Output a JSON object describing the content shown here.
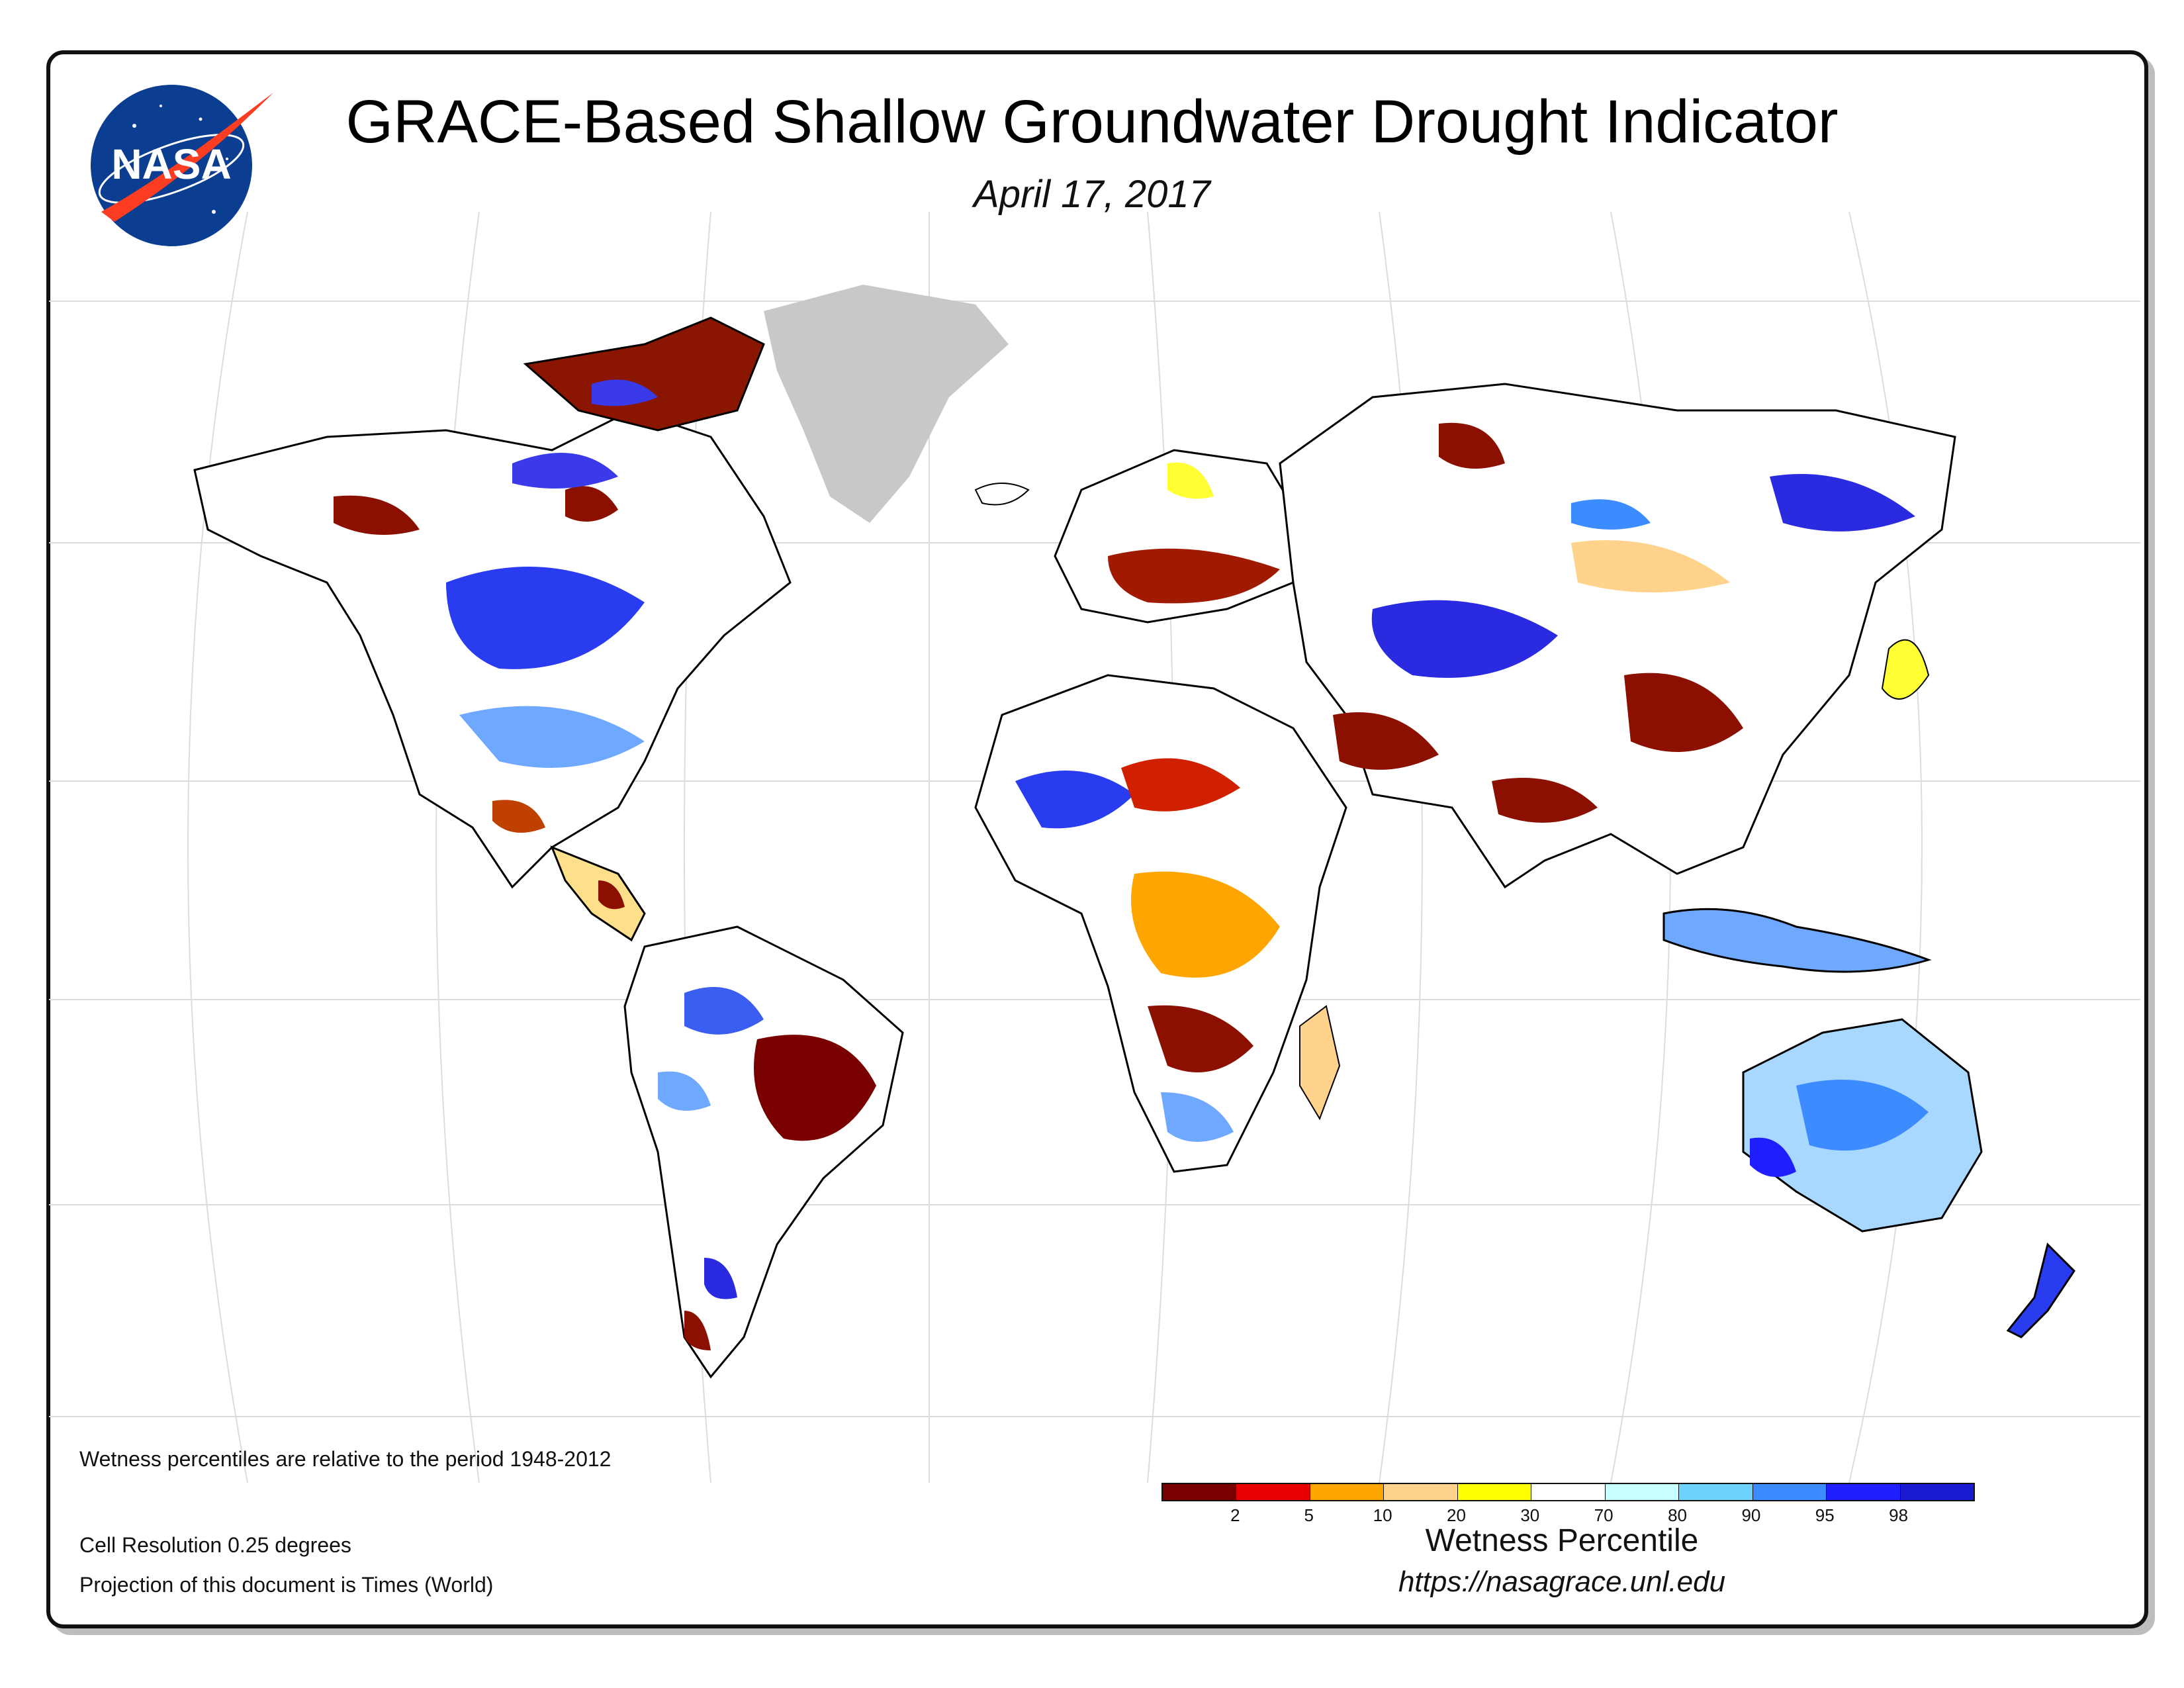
{
  "title": "GRACE-Based Shallow Groundwater Drought Indicator",
  "date": "April 17, 2017",
  "logo_text": "NASA",
  "notes": {
    "period": "Wetness percentiles are relative to the period 1948-2012",
    "resolution": "Cell Resolution 0.25 degrees",
    "projection": "Projection of this document is Times (World)"
  },
  "legend": {
    "title": "Wetness Percentile",
    "colors": [
      "#7a0000",
      "#e80000",
      "#ffa500",
      "#ffd38c",
      "#ffff00",
      "#ffffff",
      "#c8ffff",
      "#6ed2ff",
      "#3c8cff",
      "#1e1eff",
      "#1a1ad2"
    ],
    "ticks": [
      "2",
      "5",
      "10",
      "20",
      "30",
      "70",
      "80",
      "90",
      "95",
      "98"
    ]
  },
  "url": "https://nasagrace.unl.edu",
  "map_colors": {
    "land_neutral": "#ffffff",
    "greenland": "#c8c8c8",
    "outline": "#000000",
    "graticule": "#dcdcdc"
  }
}
